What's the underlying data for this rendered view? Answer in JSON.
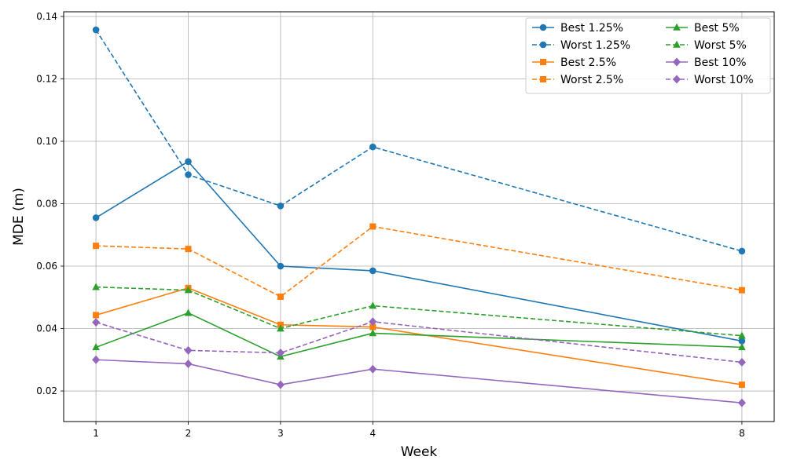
{
  "chart_data": {
    "type": "line",
    "xlabel": "Week",
    "ylabel": "MDE (m)",
    "xlim": [
      0.65,
      8.35
    ],
    "ylim": [
      0.0102,
      0.1415
    ],
    "xticks": [
      1,
      2,
      3,
      4,
      8
    ],
    "yticks": [
      0.02,
      0.04,
      0.06,
      0.08,
      0.1,
      0.12,
      0.14
    ],
    "ytick_labels": [
      "0.02",
      "0.04",
      "0.06",
      "0.08",
      "0.10",
      "0.12",
      "0.14"
    ],
    "grid": true,
    "legend_position": "top-right",
    "legend_columns": 2,
    "x": [
      1,
      2,
      3,
      4,
      8
    ],
    "series": [
      {
        "name": "Best 1.25%",
        "color": "#1f77b4",
        "dash": "solid",
        "marker": "circle",
        "values": [
          0.0755,
          0.0935,
          0.06,
          0.0585,
          0.036
        ]
      },
      {
        "name": "Worst 1.25%",
        "color": "#1f77b4",
        "dash": "dashed",
        "marker": "circle",
        "values": [
          0.1357,
          0.0893,
          0.0793,
          0.0982,
          0.0648
        ]
      },
      {
        "name": "Best 2.5%",
        "color": "#ff7f0e",
        "dash": "solid",
        "marker": "square",
        "values": [
          0.0443,
          0.053,
          0.0412,
          0.0405,
          0.022
        ]
      },
      {
        "name": "Worst 2.5%",
        "color": "#ff7f0e",
        "dash": "dashed",
        "marker": "square",
        "values": [
          0.0665,
          0.0655,
          0.0502,
          0.0727,
          0.0523
        ]
      },
      {
        "name": "Best 5%",
        "color": "#2ca02c",
        "dash": "solid",
        "marker": "triangle",
        "values": [
          0.034,
          0.045,
          0.031,
          0.0385,
          0.034
        ]
      },
      {
        "name": "Worst 5%",
        "color": "#2ca02c",
        "dash": "dashed",
        "marker": "triangle",
        "values": [
          0.0533,
          0.0523,
          0.04,
          0.0473,
          0.0377
        ]
      },
      {
        "name": "Best 10%",
        "color": "#9467bd",
        "dash": "solid",
        "marker": "diamond",
        "values": [
          0.03,
          0.0287,
          0.022,
          0.027,
          0.0162
        ]
      },
      {
        "name": "Worst 10%",
        "color": "#9467bd",
        "dash": "dashed",
        "marker": "diamond",
        "values": [
          0.042,
          0.033,
          0.0322,
          0.0422,
          0.0292
        ]
      }
    ]
  }
}
